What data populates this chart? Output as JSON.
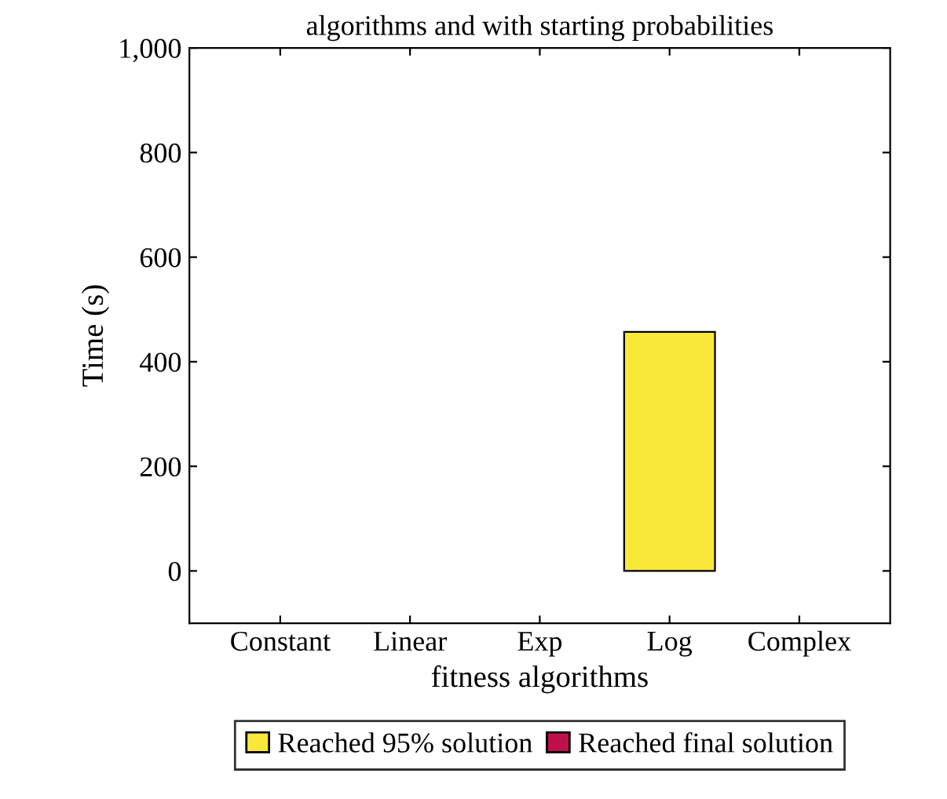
{
  "chart_data": {
    "type": "bar",
    "title": "algorithms and with starting probabilities",
    "xlabel": "fitness algorithms",
    "ylabel": "Time (s)",
    "categories": [
      "Constant",
      "Linear",
      "Exp",
      "Log",
      "Complex"
    ],
    "series": [
      {
        "name": "Reached 95% solution",
        "color": "#f9e83a",
        "values": [
          null,
          null,
          null,
          457,
          null
        ]
      },
      {
        "name": "Reached final solution",
        "color": "#c0104a",
        "values": [
          null,
          null,
          null,
          null,
          null
        ]
      }
    ],
    "ylim": [
      -100,
      1000
    ],
    "yticks": [
      0,
      200,
      400,
      600,
      800,
      {
        "value": 1000,
        "label": "1,000"
      }
    ],
    "grid": false,
    "legend": "bottom"
  }
}
